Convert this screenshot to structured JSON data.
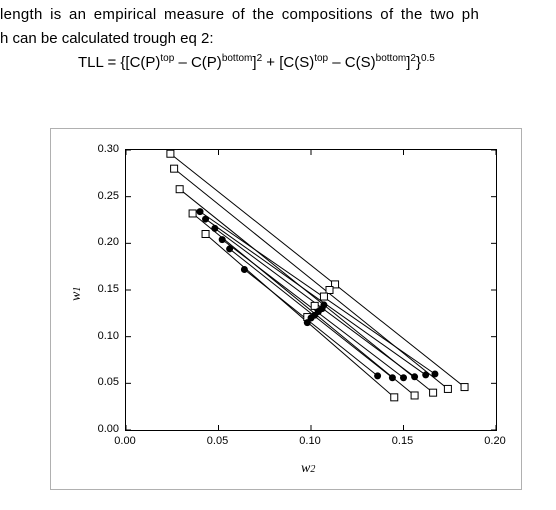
{
  "text": {
    "line1": "length  is  an  empirical  measure  of  the  compositions  of  the  two  ph",
    "line2": "h can be calculated trough eq 2:",
    "equation": "TLL = {[C(P)ᵗᵒᵖ – C(P)ᵇᵒᵗᵗᵒᵐ]² + [C(S)ᵗᵒᵖ – C(S)ᵇᵒᵗᵗᵒᵐ]²}⁰·⁵"
  },
  "chart": {
    "type": "line+scatter",
    "xlabel": "w",
    "xlabel_sub": "2",
    "ylabel": "w",
    "ylabel_sub": "1",
    "xlim": [
      0.0,
      0.2
    ],
    "ylim": [
      0.0,
      0.3
    ],
    "xticks": [
      0.0,
      0.05,
      0.1,
      0.15,
      0.2
    ],
    "yticks": [
      0.0,
      0.05,
      0.1,
      0.15,
      0.2,
      0.25,
      0.3
    ],
    "xtick_labels": [
      "0.00",
      "0.05",
      "0.10",
      "0.15",
      "0.20"
    ],
    "ytick_labels": [
      "0.00",
      "0.05",
      "0.10",
      "0.15",
      "0.20",
      "0.25",
      "0.30"
    ],
    "background_color": "#ffffff",
    "axis_color": "#000000",
    "box_border_color": "#b0b0b0",
    "line_color": "#000000",
    "line_width": 1,
    "marker_square_stroke": "#000000",
    "marker_square_fill": "#ffffff",
    "marker_square_size": 7,
    "marker_circle_fill": "#000000",
    "marker_circle_size": 7,
    "tie_lines_squares": [
      {
        "p1": [
          0.024,
          0.296
        ],
        "p2": [
          0.183,
          0.046
        ]
      },
      {
        "p1": [
          0.026,
          0.28
        ],
        "p2": [
          0.174,
          0.044
        ]
      },
      {
        "p1": [
          0.029,
          0.258
        ],
        "p2": [
          0.166,
          0.04
        ]
      },
      {
        "p1": [
          0.036,
          0.232
        ],
        "p2": [
          0.156,
          0.037
        ]
      },
      {
        "p1": [
          0.043,
          0.21
        ],
        "p2": [
          0.145,
          0.035
        ]
      }
    ],
    "tie_lines_circles": [
      {
        "p1": [
          0.04,
          0.234
        ],
        "p2": [
          0.167,
          0.06
        ]
      },
      {
        "p1": [
          0.043,
          0.226
        ],
        "p2": [
          0.162,
          0.059
        ]
      },
      {
        "p1": [
          0.048,
          0.216
        ],
        "p2": [
          0.156,
          0.057
        ]
      },
      {
        "p1": [
          0.052,
          0.204
        ],
        "p2": [
          0.15,
          0.056
        ]
      },
      {
        "p1": [
          0.056,
          0.194
        ],
        "p2": [
          0.144,
          0.056
        ]
      },
      {
        "p1": [
          0.064,
          0.172
        ],
        "p2": [
          0.136,
          0.058
        ]
      }
    ],
    "mid_circles": [
      [
        0.107,
        0.134
      ],
      [
        0.106,
        0.13
      ],
      [
        0.104,
        0.127
      ],
      [
        0.102,
        0.123
      ],
      [
        0.1,
        0.12
      ],
      [
        0.098,
        0.115
      ]
    ],
    "mid_squares": [
      [
        0.113,
        0.156
      ],
      [
        0.11,
        0.15
      ],
      [
        0.107,
        0.143
      ],
      [
        0.102,
        0.133
      ],
      [
        0.098,
        0.121
      ]
    ],
    "label_fontsize": 14,
    "tick_fontsize": 11
  }
}
